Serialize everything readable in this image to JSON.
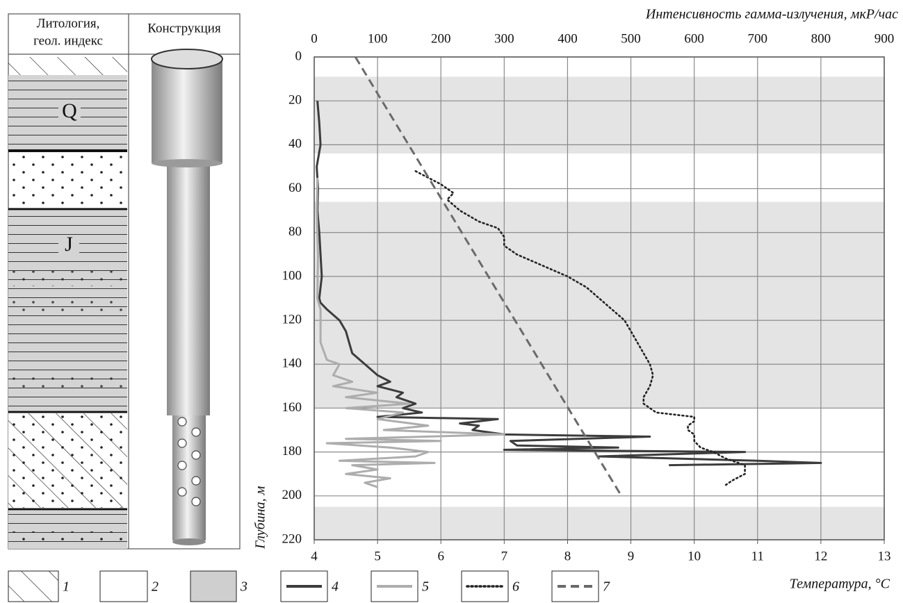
{
  "lithology": {
    "header": [
      "Литология,",
      "геол. индекс"
    ],
    "construction_header": "Конструкция",
    "indices": [
      "Q",
      "J"
    ],
    "legend_items": [
      "1",
      "2",
      "3"
    ]
  },
  "chart_data": {
    "type": "line",
    "x_label": "Интенсивность гамма-излучения,  мкР/час",
    "x2_label": "Температура, °C",
    "y_label": "Глубина, м",
    "xlim": [
      0,
      900
    ],
    "xticks": [
      0,
      100,
      200,
      300,
      400,
      500,
      600,
      700,
      800,
      900
    ],
    "x2lim": [
      4,
      13
    ],
    "x2ticks": [
      4,
      5,
      6,
      7,
      8,
      9,
      10,
      11,
      12,
      13
    ],
    "ylim": [
      0,
      220
    ],
    "yticks": [
      0,
      20,
      40,
      60,
      80,
      100,
      120,
      140,
      160,
      180,
      200,
      220
    ],
    "y_inverted": true,
    "grid": true,
    "bands": [
      [
        9,
        44
      ],
      [
        66,
        160
      ],
      [
        205,
        220
      ]
    ],
    "series": [
      {
        "name": "4",
        "color": "#3c3c3c",
        "style": "solid",
        "axis": "x",
        "depth": [
          20,
          30,
          40,
          50,
          60,
          70,
          80,
          90,
          100,
          110,
          112,
          115,
          120,
          125,
          130,
          135,
          140,
          145,
          148,
          150,
          153,
          155,
          158,
          160,
          162,
          164,
          165,
          167,
          168,
          170,
          172,
          173,
          175,
          177,
          178,
          179,
          180,
          182,
          184,
          185,
          186
        ],
        "values": [
          5,
          8,
          10,
          4,
          6,
          5,
          8,
          10,
          12,
          8,
          10,
          20,
          40,
          50,
          55,
          60,
          80,
          100,
          120,
          100,
          140,
          130,
          160,
          140,
          170,
          100,
          290,
          230,
          260,
          250,
          300,
          530,
          310,
          320,
          480,
          300,
          680,
          450,
          700,
          800,
          560
        ]
      },
      {
        "name": "5",
        "color": "#adadad",
        "style": "solid",
        "axis": "x",
        "depth": [
          55,
          70,
          90,
          110,
          115,
          120,
          130,
          138,
          140,
          145,
          148,
          150,
          153,
          155,
          158,
          160,
          162,
          165,
          168,
          170,
          172,
          174,
          175,
          176,
          178,
          180,
          182,
          184,
          185,
          186,
          188,
          190,
          192,
          194,
          196
        ],
        "values": [
          5,
          4,
          6,
          5,
          10,
          10,
          10,
          20,
          40,
          30,
          60,
          30,
          100,
          50,
          150,
          50,
          140,
          100,
          180,
          110,
          300,
          50,
          200,
          20,
          120,
          180,
          160,
          40,
          190,
          60,
          100,
          50,
          120,
          80,
          100
        ]
      },
      {
        "name": "6",
        "color": "#222222",
        "style": "dotted",
        "axis": "x2",
        "depth": [
          52,
          55,
          58,
          62,
          65,
          70,
          75,
          78,
          82,
          86,
          90,
          95,
          100,
          105,
          110,
          115,
          120,
          125,
          130,
          135,
          140,
          145,
          150,
          155,
          158,
          162,
          164,
          166,
          168,
          170,
          172,
          175,
          178,
          180,
          183,
          186,
          190,
          193,
          195
        ],
        "values": [
          5.6,
          5.8,
          6.0,
          6.2,
          6.1,
          6.3,
          6.6,
          6.9,
          7.0,
          7.0,
          7.2,
          7.6,
          8.0,
          8.3,
          8.5,
          8.7,
          8.9,
          9.0,
          9.1,
          9.2,
          9.3,
          9.35,
          9.3,
          9.2,
          9.2,
          9.4,
          10.0,
          10.0,
          9.9,
          9.9,
          10.0,
          10.0,
          10.1,
          10.3,
          10.5,
          10.8,
          10.8,
          10.6,
          10.5
        ]
      },
      {
        "name": "7",
        "color": "#6a6a6a",
        "style": "dashed",
        "axis": "x2",
        "depth": [
          0,
          200
        ],
        "values": [
          4.65,
          8.85
        ]
      }
    ]
  }
}
